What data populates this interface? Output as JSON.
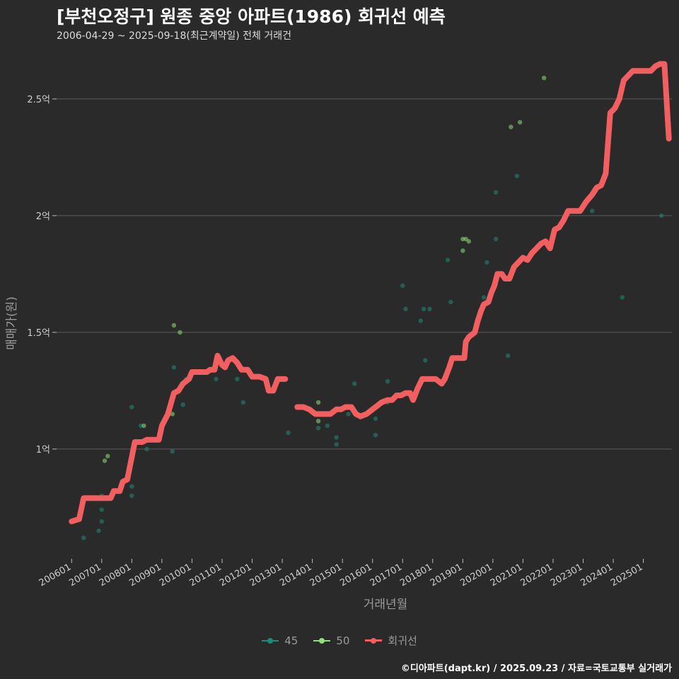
{
  "title": "[부천오정구] 원종 중앙 아파트(1986) 회귀선 예측",
  "subtitle": "2006-04-29 ~ 2025-09-18(최근계약일) 전체 거래건",
  "caption": "©디아파트(dapt.kr) / 2025.09.23 / 자료=국토교통부 실거래가",
  "chart_data": {
    "type": "scatter",
    "xlabel": "거래년월",
    "ylabel": "매매가(원)",
    "x_ticks": [
      "200601",
      "200701",
      "200801",
      "200901",
      "201001",
      "201101",
      "201201",
      "201301",
      "201401",
      "201501",
      "201601",
      "201701",
      "201801",
      "201901",
      "202001",
      "202101",
      "202201",
      "202301",
      "202401",
      "202501"
    ],
    "y_ticks": [
      {
        "value": 1.0,
        "label": "1억"
      },
      {
        "value": 1.5,
        "label": "1.5억"
      },
      {
        "value": 2.0,
        "label": "2억"
      },
      {
        "value": 2.5,
        "label": "2.5억"
      }
    ],
    "ylim": [
      0.53,
      2.73
    ],
    "xlim": [
      2005.5,
      2025.95
    ],
    "grid": "horizontal",
    "legend_position": "bottom",
    "legend": [
      {
        "name": "45",
        "color": "#1f8a78",
        "kind": "point"
      },
      {
        "name": "50",
        "color": "#8fe07a",
        "kind": "point"
      },
      {
        "name": "회귀선",
        "color": "#f15f60",
        "kind": "line"
      }
    ],
    "series": [
      {
        "name": "45",
        "color": "#1f8a78",
        "points": [
          [
            2006.4,
            0.62
          ],
          [
            2006.9,
            0.65
          ],
          [
            2007.0,
            0.69
          ],
          [
            2007.0,
            0.74
          ],
          [
            2007.0,
            0.8
          ],
          [
            2008.0,
            0.84
          ],
          [
            2008.0,
            0.8
          ],
          [
            2008.0,
            1.18
          ],
          [
            2008.3,
            1.1
          ],
          [
            2008.5,
            1.0
          ],
          [
            2009.3,
            1.2
          ],
          [
            2009.35,
            0.99
          ],
          [
            2009.4,
            1.35
          ],
          [
            2009.7,
            1.19
          ],
          [
            2009.8,
            1.3
          ],
          [
            2010.8,
            1.3
          ],
          [
            2011.5,
            1.3
          ],
          [
            2011.7,
            1.2
          ],
          [
            2013.2,
            1.07
          ],
          [
            2014.2,
            1.09
          ],
          [
            2014.5,
            1.1
          ],
          [
            2014.8,
            1.05
          ],
          [
            2014.8,
            1.02
          ],
          [
            2015.1,
            1.18
          ],
          [
            2015.2,
            1.15
          ],
          [
            2015.4,
            1.28
          ],
          [
            2016.1,
            1.06
          ],
          [
            2016.1,
            1.13
          ],
          [
            2016.5,
            1.2
          ],
          [
            2016.5,
            1.29
          ],
          [
            2017.0,
            1.7
          ],
          [
            2017.1,
            1.6
          ],
          [
            2017.6,
            1.55
          ],
          [
            2017.7,
            1.6
          ],
          [
            2017.75,
            1.38
          ],
          [
            2017.9,
            1.6
          ],
          [
            2018.5,
            1.81
          ],
          [
            2018.6,
            1.63
          ],
          [
            2019.7,
            1.65
          ],
          [
            2019.8,
            1.8
          ],
          [
            2020.1,
            2.1
          ],
          [
            2020.1,
            1.9
          ],
          [
            2020.5,
            1.4
          ],
          [
            2020.8,
            2.17
          ],
          [
            2024.3,
            1.65
          ],
          [
            2025.6,
            2.0
          ],
          [
            2023.3,
            2.02
          ]
        ]
      },
      {
        "name": "50",
        "color": "#8fe07a",
        "points": [
          [
            2007.1,
            0.95
          ],
          [
            2007.2,
            0.97
          ],
          [
            2008.4,
            1.1
          ],
          [
            2009.4,
            1.53
          ],
          [
            2009.35,
            1.15
          ],
          [
            2009.6,
            1.5
          ],
          [
            2009.9,
            1.3
          ],
          [
            2014.2,
            1.12
          ],
          [
            2014.2,
            1.2
          ],
          [
            2019.0,
            1.9
          ],
          [
            2019.1,
            1.9
          ],
          [
            2019.0,
            1.85
          ],
          [
            2019.2,
            1.89
          ],
          [
            2020.6,
            2.38
          ],
          [
            2020.9,
            2.4
          ],
          [
            2021.7,
            2.59
          ]
        ]
      },
      {
        "name": "회귀선",
        "color": "#f15f60",
        "segments": [
          [
            [
              2006.0,
              0.69
            ],
            [
              2006.25,
              0.7
            ],
            [
              2006.4,
              0.79
            ],
            [
              2007.0,
              0.79
            ],
            [
              2007.3,
              0.79
            ],
            [
              2007.4,
              0.82
            ],
            [
              2007.6,
              0.82
            ],
            [
              2007.7,
              0.86
            ],
            [
              2007.85,
              0.87
            ],
            [
              2008.1,
              1.03
            ],
            [
              2008.35,
              1.03
            ],
            [
              2008.5,
              1.04
            ],
            [
              2008.9,
              1.04
            ],
            [
              2009.0,
              1.1
            ],
            [
              2009.2,
              1.15
            ],
            [
              2009.4,
              1.24
            ],
            [
              2009.55,
              1.25
            ],
            [
              2009.7,
              1.28
            ],
            [
              2009.9,
              1.3
            ],
            [
              2010.0,
              1.33
            ],
            [
              2010.3,
              1.33
            ],
            [
              2010.5,
              1.33
            ],
            [
              2010.6,
              1.34
            ],
            [
              2010.75,
              1.34
            ],
            [
              2010.85,
              1.4
            ],
            [
              2011.0,
              1.36
            ],
            [
              2011.1,
              1.35
            ],
            [
              2011.2,
              1.38
            ],
            [
              2011.35,
              1.39
            ],
            [
              2011.5,
              1.37
            ],
            [
              2011.65,
              1.34
            ],
            [
              2011.85,
              1.34
            ],
            [
              2012.0,
              1.31
            ],
            [
              2012.25,
              1.31
            ],
            [
              2012.45,
              1.3
            ],
            [
              2012.55,
              1.25
            ],
            [
              2012.7,
              1.25
            ],
            [
              2012.85,
              1.3
            ],
            [
              2012.95,
              1.3
            ],
            [
              2013.1,
              1.3
            ]
          ],
          [
            [
              2013.5,
              1.18
            ],
            [
              2013.7,
              1.18
            ],
            [
              2013.9,
              1.17
            ],
            [
              2014.1,
              1.15
            ],
            [
              2014.35,
              1.15
            ],
            [
              2014.6,
              1.15
            ],
            [
              2014.8,
              1.17
            ],
            [
              2014.95,
              1.17
            ],
            [
              2015.1,
              1.18
            ],
            [
              2015.3,
              1.18
            ],
            [
              2015.45,
              1.15
            ],
            [
              2015.6,
              1.14
            ],
            [
              2015.8,
              1.15
            ],
            [
              2016.0,
              1.17
            ],
            [
              2016.3,
              1.2
            ],
            [
              2016.5,
              1.21
            ],
            [
              2016.65,
              1.21
            ],
            [
              2016.8,
              1.23
            ],
            [
              2016.95,
              1.23
            ],
            [
              2017.1,
              1.24
            ],
            [
              2017.25,
              1.24
            ],
            [
              2017.35,
              1.21
            ],
            [
              2017.5,
              1.26
            ],
            [
              2017.65,
              1.3
            ],
            [
              2017.9,
              1.3
            ],
            [
              2018.1,
              1.3
            ],
            [
              2018.3,
              1.28
            ],
            [
              2018.4,
              1.3
            ],
            [
              2018.55,
              1.35
            ],
            [
              2018.65,
              1.39
            ],
            [
              2018.85,
              1.39
            ],
            [
              2019.05,
              1.39
            ],
            [
              2019.1,
              1.46
            ],
            [
              2019.2,
              1.48
            ],
            [
              2019.4,
              1.5
            ],
            [
              2019.5,
              1.55
            ],
            [
              2019.6,
              1.59
            ],
            [
              2019.7,
              1.62
            ],
            [
              2019.85,
              1.63
            ],
            [
              2019.95,
              1.67
            ],
            [
              2020.05,
              1.7
            ],
            [
              2020.15,
              1.75
            ],
            [
              2020.3,
              1.75
            ],
            [
              2020.4,
              1.73
            ],
            [
              2020.55,
              1.73
            ],
            [
              2020.7,
              1.78
            ],
            [
              2020.85,
              1.8
            ],
            [
              2021.0,
              1.82
            ],
            [
              2021.15,
              1.81
            ],
            [
              2021.3,
              1.84
            ],
            [
              2021.45,
              1.86
            ],
            [
              2021.6,
              1.88
            ],
            [
              2021.75,
              1.89
            ],
            [
              2021.9,
              1.86
            ],
            [
              2022.05,
              1.94
            ],
            [
              2022.2,
              1.95
            ],
            [
              2022.35,
              1.98
            ],
            [
              2022.5,
              2.02
            ],
            [
              2022.7,
              2.02
            ],
            [
              2022.9,
              2.02
            ],
            [
              2023.1,
              2.06
            ],
            [
              2023.3,
              2.09
            ],
            [
              2023.45,
              2.12
            ],
            [
              2023.6,
              2.13
            ],
            [
              2023.75,
              2.18
            ],
            [
              2023.9,
              2.44
            ],
            [
              2024.05,
              2.46
            ],
            [
              2024.2,
              2.5
            ],
            [
              2024.35,
              2.58
            ],
            [
              2024.5,
              2.6
            ],
            [
              2024.65,
              2.62
            ],
            [
              2024.85,
              2.62
            ],
            [
              2025.05,
              2.62
            ],
            [
              2025.25,
              2.62
            ],
            [
              2025.4,
              2.64
            ],
            [
              2025.55,
              2.65
            ],
            [
              2025.7,
              2.65
            ],
            [
              2025.85,
              2.33
            ]
          ]
        ]
      }
    ]
  }
}
